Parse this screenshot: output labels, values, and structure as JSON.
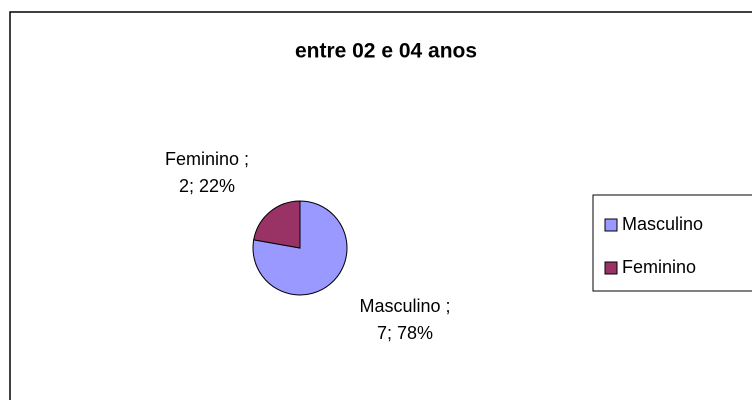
{
  "chart_data": {
    "type": "pie",
    "title": "entre 02 e 04 anos",
    "categories": [
      "Masculino",
      "Feminino"
    ],
    "values": [
      7,
      2
    ],
    "value_labels": [
      "7; 78%",
      "2; 22%"
    ],
    "label_names": [
      "Masculino ;",
      "Feminino ;"
    ],
    "colors": [
      "#9999ff",
      "#993366"
    ],
    "legend": "right"
  }
}
